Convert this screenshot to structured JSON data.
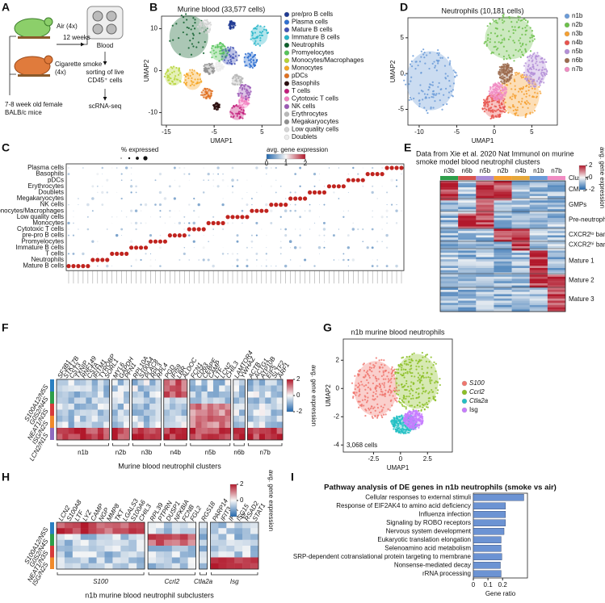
{
  "panel_labels": [
    "A",
    "B",
    "C",
    "D",
    "E",
    "F",
    "G",
    "H",
    "I"
  ],
  "panel_a": {
    "air": "Air (4x)",
    "smoke": "Cigarette smoke",
    "smoke_n": "(4x)",
    "duration": "12 weeks",
    "blood": "Blood",
    "sorting": "sorting of live",
    "sorting2": "CD45⁺ cells",
    "assay": "scRNA-seq",
    "mice": "7-8 week old female",
    "strain": "BALB/c mice"
  },
  "chart_data": [
    {
      "type": "scatter",
      "title": "Murine blood (33,577 cells)",
      "xlabel": "UMAP1",
      "ylabel": "UMAP2",
      "xlim": [
        -16,
        9
      ],
      "ylim": [
        -13,
        13
      ],
      "xticks": [
        -15,
        -5,
        5
      ],
      "yticks": [
        -10,
        0,
        10
      ],
      "clusters": [
        {
          "name": "pre/pro B cells",
          "color": "#1f3a93",
          "x": -1.3,
          "y": 10.8
        },
        {
          "name": "Plasma cells",
          "color": "#2f6fd0",
          "x": 2.5,
          "y": 2.5
        },
        {
          "name": "Mature B cells",
          "color": "#3f51b5",
          "x": -1.8,
          "y": 3.4
        },
        {
          "name": "Immature B cells",
          "color": "#26b5c9",
          "x": 4.4,
          "y": 8.4
        },
        {
          "name": "Neutrophils",
          "color": "#0d5e2a",
          "x": -10.3,
          "y": 8.1
        },
        {
          "name": "Promyelocytes",
          "color": "#56c35a",
          "x": -3.9,
          "y": 4.4
        },
        {
          "name": "Monocytes/Macrophages",
          "color": "#b5d334",
          "x": -13.5,
          "y": -1.3
        },
        {
          "name": "Monocytes",
          "color": "#f5a623",
          "x": -9.5,
          "y": -2.3
        },
        {
          "name": "pDCs",
          "color": "#e07020",
          "x": -6.5,
          "y": -5.5
        },
        {
          "name": "Basophils",
          "color": "#2a0d0d",
          "x": -4.5,
          "y": -8.5
        },
        {
          "name": "T cells",
          "color": "#c21c7a",
          "x": -0.2,
          "y": -10
        },
        {
          "name": "Cytotoxic T cells",
          "color": "#f27fc0",
          "x": 1.2,
          "y": -7.5
        },
        {
          "name": "NK cells",
          "color": "#9b59b6",
          "x": 1.4,
          "y": -5
        },
        {
          "name": "Erythrocytes",
          "color": "#b8b8b8",
          "x": -0.2,
          "y": -2.3
        },
        {
          "name": "Megakaryocytes",
          "color": "#8f8f8f",
          "x": -6,
          "y": 0.5
        },
        {
          "name": "Low quality cells",
          "color": "#d4d4d4",
          "x": -7,
          "y": 10.5
        },
        {
          "name": "Doublets",
          "color": "#ececec",
          "x": -4,
          "y": 1
        }
      ]
    },
    {
      "type": "scatter",
      "title": "Neutrophils (10,181 cells)",
      "xlabel": "UMAP1",
      "ylabel": "UMAP2",
      "xlim": [
        -11.5,
        8.4
      ],
      "ylim": [
        -7.2,
        7.8
      ],
      "xticks": [
        -10,
        -5,
        0,
        5
      ],
      "yticks": [
        -5,
        0,
        5
      ],
      "clusters": [
        {
          "name": "n1b",
          "color": "#6b9bd8",
          "x": -8.5,
          "y": -1
        },
        {
          "name": "n2b",
          "color": "#6cc04a",
          "x": 2,
          "y": 5
        },
        {
          "name": "n3b",
          "color": "#f5a031",
          "x": 3.5,
          "y": -3
        },
        {
          "name": "n4b",
          "color": "#e9534d",
          "x": 0,
          "y": -4.5
        },
        {
          "name": "n5b",
          "color": "#b48fd8",
          "x": 5.5,
          "y": 0.5
        },
        {
          "name": "n6b",
          "color": "#9c6b4e",
          "x": 1.5,
          "y": 0
        },
        {
          "name": "n7b",
          "color": "#f18cc3",
          "x": 0.5,
          "y": -2.5
        }
      ]
    },
    {
      "type": "scatter",
      "title": "n1b murine blood neutrophils",
      "xlabel": "UMAP1",
      "ylabel": "UMAP2",
      "note": "3,068 cells",
      "xlim": [
        -5.3,
        4.8
      ],
      "ylim": [
        -4.5,
        3.5
      ],
      "xticks": [
        -2.5,
        0,
        2.5
      ],
      "yticks": [
        -4,
        -2,
        0,
        2
      ],
      "clusters": [
        {
          "name": "S100",
          "color": "#f0766e",
          "x": -2.3,
          "y": 0
        },
        {
          "name": "Ccrl2",
          "color": "#8cbf26",
          "x": 1.5,
          "y": 0.5
        },
        {
          "name": "Ctla2a",
          "color": "#22bfc4",
          "x": 0.3,
          "y": -2.5
        },
        {
          "name": "Isg",
          "color": "#c77cff",
          "x": 1.2,
          "y": -2.2
        }
      ]
    },
    {
      "type": "hbar",
      "title": "Pathway analysis of DE genes in n1b neutrophils (smoke vs air)",
      "xlabel": "Gene ratio",
      "xlim": [
        0,
        0.37
      ],
      "xticks": [
        0,
        0.1,
        0.2
      ],
      "color": "#6c93d3",
      "categories": [
        "Cellular responses to external stimuli",
        "Response of EIF2AK4 to amino acid deficiency",
        "Influenza infection",
        "Signaling by ROBO receptors",
        "Nervous system development",
        "Eukaryotic translation elongation",
        "Selenoamino acid metabolism",
        "SRP-dependent cotranslational protein targeting to membrane",
        "Nonsense-mediated decay",
        "rRNA processing"
      ],
      "values": [
        0.345,
        0.22,
        0.22,
        0.22,
        0.21,
        0.19,
        0.19,
        0.195,
        0.185,
        0.19
      ]
    }
  ],
  "panel_c": {
    "size_legend": "% expressed",
    "color_legend": "avg. gene expression",
    "scale": [
      0,
      1,
      2
    ],
    "rows": [
      "Plasma cells",
      "Basophils",
      "pDCs",
      "Erythrocytes",
      "Doublets",
      "Megakaryocytes",
      "NK cells",
      "Monocytes/Macrophages",
      "Low quality cells",
      "Monocytes",
      "Cytotoxic T cells",
      "pre-pro B cells",
      "Promyelocytes",
      "Immature B cells",
      "T cells",
      "Neutrophils",
      "Mature B cells"
    ]
  },
  "panel_e": {
    "title": "Data from Xie et al. 2020 Nat Immunol on murine",
    "title2": "smoke model blood neutrophil clusters",
    "columns": [
      "n3b",
      "n6b",
      "n5b",
      "n2b",
      "n4b",
      "n1b",
      "n7b"
    ],
    "column_colors": [
      "#2e9e4a",
      "#d9534f",
      "#a98bd6",
      "#f5a031",
      "#e6a83a",
      "#6b9bd8",
      "#f18cc3"
    ],
    "cluster_label": "Cluster",
    "color_legend": "avg. gene expression",
    "scale": [
      2,
      0,
      -2
    ],
    "groups": [
      "CMPs",
      "GMPs",
      "Pre-neutrophils",
      "CXCR2ˡᵒ band",
      "CXCR2ʰⁱ band",
      "Mature 1",
      "Mature 2",
      "Mature 3"
    ]
  },
  "panel_f": {
    "rows": [
      "S100A12/N5S",
      "G0S2/N4S",
      "NEAT1/N3S",
      "ISG/N2S",
      "LCN2/N1S"
    ],
    "groups": [
      {
        "name": "n1b",
        "genes": [
          "SF3B1",
          "STK17B",
          "CST3",
          "TXNIP",
          "RNF149",
          "CSTA",
          "IFITM1",
          "TYROBP",
          "SORL1"
        ]
      },
      {
        "name": "n2b",
        "genes": [
          "MYL6",
          "GAPDH",
          "PFN1"
        ]
      },
      {
        "name": "n3b",
        "genes": [
          "RPL10A",
          "S100A4",
          "PLAC8",
          "RPL3",
          "RPL4"
        ]
      },
      {
        "name": "n4b",
        "genes": [
          "PGD",
          "IFI59",
          "LBR",
          "ALDOC"
        ]
      },
      {
        "name": "n5b",
        "genes": [
          "FCN1",
          "CD63",
          "CEBPE",
          "CAMP",
          "LTF",
          "LCN2",
          "CHIL3"
        ]
      },
      {
        "name": "n6b",
        "genes": [
          "LAMTOR4",
          "YWHAZ"
        ]
      },
      {
        "name": "n7b",
        "genes": [
          "ACTB",
          "ACTG1",
          "ATP10B",
          "EIF5",
          "SLTF2",
          "ARF1"
        ]
      }
    ],
    "xlabel": "Murine blood neutrophil clusters",
    "color_legend": "avg. gene expression",
    "scale": [
      2,
      0,
      -2
    ]
  },
  "panel_h": {
    "rows": [
      "S100A12/N5S",
      "G0S2/N4S",
      "NEAT1/N3S",
      "ISG/N2S"
    ],
    "groups": [
      {
        "name": "S100",
        "genes": [
          "LCN2",
          "S100A8",
          "LTF",
          "LYZ",
          "CAMP",
          "NGP",
          "MMP8",
          "TKT",
          "LGALS3",
          "S100A6",
          "CHIL3"
        ]
      },
      {
        "name": "Ccrl2",
        "genes": [
          "RPL39",
          "PTPRN",
          "DUSP1",
          "NFKBIA",
          "FCNB",
          "FGL2"
        ]
      },
      {
        "name": "Ctla2a",
        "genes": [
          "RGS18"
        ]
      },
      {
        "name": "Isg",
        "genes": [
          "PARP14",
          "IFIT3",
          "IFI47",
          "ISG15",
          "RSAD2",
          "STAT1"
        ]
      }
    ],
    "xlabel": "n1b murine blood neutrophil subclusters",
    "color_legend": "avg. gene expression",
    "scale": [
      2,
      0,
      -2
    ]
  }
}
